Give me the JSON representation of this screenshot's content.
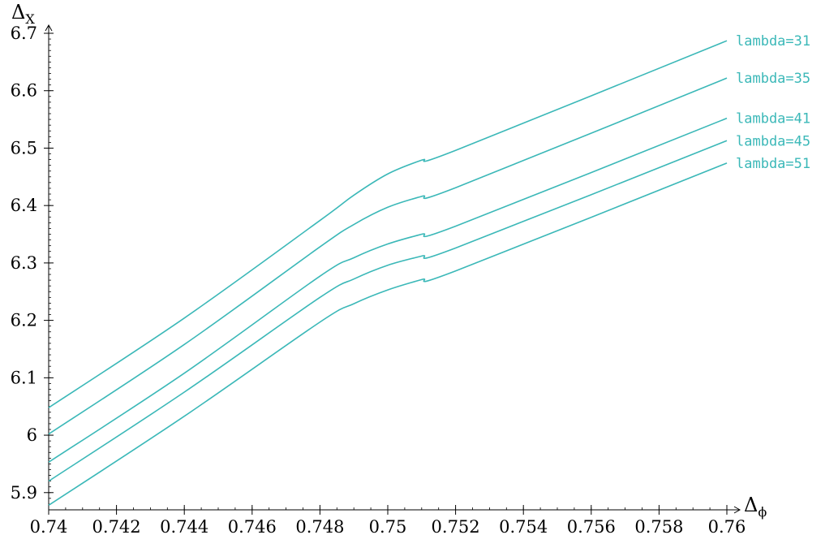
{
  "chart_data": {
    "type": "line",
    "xlabel": "Δ",
    "xlabel_sub": "ϕ",
    "ylabel": "Δ",
    "ylabel_sub": "X",
    "xlim": [
      0.74,
      0.76
    ],
    "ylim": [
      5.87,
      6.7
    ],
    "x_ticks": [
      0.74,
      0.742,
      0.744,
      0.746,
      0.748,
      0.75,
      0.752,
      0.754,
      0.756,
      0.758,
      0.76
    ],
    "x_tick_labels": [
      "0.74",
      "0.742",
      "0.744",
      "0.746",
      "0.748",
      "0.75",
      "0.752",
      "0.754",
      "0.756",
      "0.758",
      "0.76"
    ],
    "y_ticks": [
      5.9,
      6.0,
      6.1,
      6.2,
      6.3,
      6.4,
      6.5,
      6.6,
      6.7
    ],
    "y_tick_labels": [
      "5.9",
      "6",
      "6.1",
      "6.2",
      "6.3",
      "6.4",
      "6.5",
      "6.6",
      "6.7"
    ],
    "grid": false,
    "line_color": "#3bb8b8",
    "series": [
      {
        "name": "lambda=31",
        "x": [
          0.74,
          0.744,
          0.748,
          0.749,
          0.75,
          0.751,
          0.752,
          0.76
        ],
        "y": [
          6.048,
          6.204,
          6.374,
          6.418,
          6.455,
          6.479,
          6.496,
          6.687
        ]
      },
      {
        "name": "lambda=35",
        "x": [
          0.74,
          0.744,
          0.748,
          0.749,
          0.75,
          0.751,
          0.752,
          0.76
        ],
        "y": [
          6.002,
          6.158,
          6.328,
          6.367,
          6.397,
          6.416,
          6.431,
          6.622
        ]
      },
      {
        "name": "lambda=41",
        "x": [
          0.74,
          0.744,
          0.748,
          0.749,
          0.75,
          0.751,
          0.752,
          0.76
        ],
        "y": [
          5.953,
          6.108,
          6.277,
          6.309,
          6.333,
          6.35,
          6.364,
          6.552
        ]
      },
      {
        "name": "lambda=45",
        "x": [
          0.74,
          0.744,
          0.748,
          0.749,
          0.75,
          0.751,
          0.752,
          0.76
        ],
        "y": [
          5.92,
          6.075,
          6.24,
          6.272,
          6.296,
          6.312,
          6.326,
          6.513
        ]
      },
      {
        "name": "lambda=51",
        "x": [
          0.74,
          0.744,
          0.748,
          0.749,
          0.75,
          0.751,
          0.752,
          0.76
        ],
        "y": [
          5.878,
          6.033,
          6.197,
          6.229,
          6.253,
          6.271,
          6.286,
          6.474
        ]
      }
    ]
  }
}
